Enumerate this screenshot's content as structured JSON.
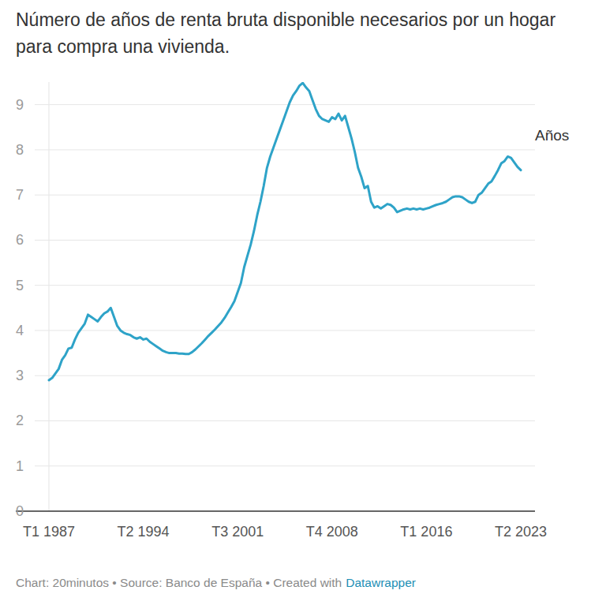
{
  "chart_data": {
    "type": "line",
    "title": "Número de años de renta bruta disponible necesarios por un hogar para compra una vivienda.",
    "categories": [
      "T1 1987",
      null,
      null,
      null,
      null,
      null,
      null,
      null,
      null,
      null,
      null,
      null,
      null,
      null,
      null,
      null,
      null,
      null,
      null,
      null,
      null,
      null,
      null,
      null,
      null,
      null,
      null,
      null,
      null,
      "T2 1994",
      null,
      null,
      null,
      null,
      null,
      null,
      null,
      null,
      null,
      null,
      null,
      null,
      null,
      null,
      null,
      null,
      null,
      null,
      null,
      null,
      null,
      null,
      null,
      null,
      null,
      null,
      null,
      null,
      "T3 2001",
      null,
      null,
      null,
      null,
      null,
      null,
      null,
      null,
      null,
      null,
      null,
      null,
      null,
      null,
      null,
      null,
      null,
      null,
      null,
      null,
      null,
      null,
      null,
      null,
      null,
      null,
      null,
      null,
      "T4 2008",
      null,
      null,
      null,
      null,
      null,
      null,
      null,
      null,
      null,
      null,
      null,
      null,
      null,
      null,
      null,
      null,
      null,
      null,
      null,
      null,
      null,
      null,
      null,
      null,
      null,
      null,
      null,
      null,
      "T1 2016",
      null,
      null,
      null,
      null,
      null,
      null,
      null,
      null,
      null,
      null,
      null,
      null,
      null,
      null,
      null,
      null,
      null,
      null,
      null,
      null,
      null,
      null,
      null,
      null,
      null,
      null,
      null,
      null,
      "T2 2023"
    ],
    "series": [
      {
        "name": "Años",
        "color": "#2ea3c8",
        "values": [
          2.9,
          2.95,
          3.05,
          3.15,
          3.35,
          3.45,
          3.6,
          3.62,
          3.8,
          3.95,
          4.05,
          4.15,
          4.35,
          4.3,
          4.25,
          4.2,
          4.3,
          4.38,
          4.42,
          4.5,
          4.3,
          4.1,
          4.0,
          3.95,
          3.92,
          3.9,
          3.85,
          3.82,
          3.85,
          3.8,
          3.82,
          3.75,
          3.7,
          3.65,
          3.6,
          3.55,
          3.52,
          3.5,
          3.5,
          3.5,
          3.49,
          3.49,
          3.48,
          3.48,
          3.52,
          3.58,
          3.65,
          3.72,
          3.8,
          3.88,
          3.95,
          4.02,
          4.1,
          4.18,
          4.28,
          4.4,
          4.52,
          4.65,
          4.85,
          5.05,
          5.4,
          5.65,
          5.9,
          6.2,
          6.55,
          6.85,
          7.2,
          7.6,
          7.85,
          8.05,
          8.25,
          8.45,
          8.65,
          8.85,
          9.05,
          9.2,
          9.3,
          9.42,
          9.48,
          9.38,
          9.3,
          9.1,
          8.9,
          8.75,
          8.68,
          8.65,
          8.62,
          8.72,
          8.68,
          8.8,
          8.65,
          8.75,
          8.5,
          8.25,
          7.95,
          7.6,
          7.4,
          7.15,
          7.2,
          6.85,
          6.72,
          6.75,
          6.7,
          6.75,
          6.8,
          6.78,
          6.72,
          6.62,
          6.65,
          6.68,
          6.7,
          6.68,
          6.7,
          6.68,
          6.7,
          6.68,
          6.7,
          6.72,
          6.75,
          6.78,
          6.8,
          6.82,
          6.85,
          6.9,
          6.95,
          6.97,
          6.97,
          6.95,
          6.9,
          6.85,
          6.82,
          6.85,
          7.0,
          7.05,
          7.15,
          7.25,
          7.3,
          7.42,
          7.55,
          7.7,
          7.75,
          7.85,
          7.82,
          7.72,
          7.62,
          7.55
        ]
      }
    ],
    "ylim": [
      0,
      9.5
    ],
    "yticks": [
      0,
      1,
      2,
      3,
      4,
      5,
      6,
      7,
      8,
      9
    ],
    "grid": true,
    "credit": "Chart: 20minutos • Source: Banco de España • Created with",
    "credit_link": "Datawrapper"
  }
}
